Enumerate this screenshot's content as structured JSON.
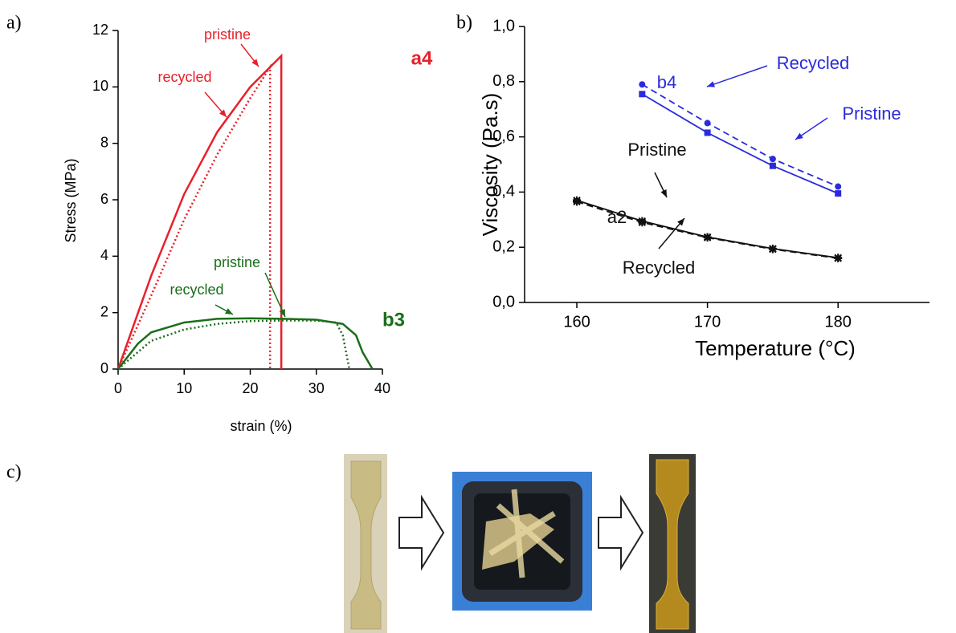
{
  "panel_labels": [
    "a)",
    "b)",
    "c)"
  ],
  "chart_data": [
    {
      "type": "line",
      "xlabel": "strain (%)",
      "ylabel": "Stress (MPa)",
      "xlim": [
        0,
        40
      ],
      "ylim": [
        0,
        12
      ],
      "xticks": [
        0,
        10,
        20,
        30,
        40
      ],
      "yticks": [
        0,
        2,
        4,
        6,
        8,
        10,
        12
      ],
      "series": [
        {
          "name": "a4 pristine",
          "color": "#e8202a",
          "dash": "solid",
          "x": [
            0,
            5,
            10,
            15,
            20,
            24.7,
            24.7
          ],
          "values": [
            0,
            3.3,
            6.2,
            8.4,
            10.0,
            11.1,
            0
          ]
        },
        {
          "name": "a4 recycled",
          "color": "#e8202a",
          "dash": "dotted",
          "x": [
            0,
            5,
            10,
            15,
            20,
            23,
            23
          ],
          "values": [
            0,
            2.6,
            5.3,
            7.6,
            9.6,
            10.7,
            0
          ]
        },
        {
          "name": "b3 pristine",
          "color": "#1a6e1a",
          "dash": "solid",
          "x": [
            0,
            3,
            5,
            10,
            15,
            20,
            25,
            30,
            34,
            36,
            37,
            38.5
          ],
          "values": [
            0,
            0.9,
            1.3,
            1.65,
            1.78,
            1.8,
            1.78,
            1.75,
            1.6,
            1.2,
            0.6,
            0
          ]
        },
        {
          "name": "b3 recycled",
          "color": "#1a6e1a",
          "dash": "dotted",
          "x": [
            0,
            5,
            10,
            15,
            20,
            25,
            30,
            33,
            34,
            35
          ],
          "values": [
            0,
            1.0,
            1.4,
            1.6,
            1.7,
            1.72,
            1.72,
            1.65,
            1.2,
            0
          ]
        }
      ],
      "annotations": [
        {
          "text": "pristine",
          "color": "#e8202a"
        },
        {
          "text": "recycled",
          "color": "#e8202a"
        },
        {
          "text": "a4",
          "color": "#e8202a"
        },
        {
          "text": "pristine",
          "color": "#1a6e1a"
        },
        {
          "text": "recycled",
          "color": "#1a6e1a"
        },
        {
          "text": "b3",
          "color": "#1a6e1a"
        }
      ]
    },
    {
      "type": "line",
      "xlabel": "Temperature (°C)",
      "ylabel": "Viscosity (Pa.s)",
      "xlim": [
        156,
        187
      ],
      "ylim": [
        0,
        1.0
      ],
      "xticks": [
        160,
        170,
        180
      ],
      "yticks": [
        {
          "value": 0,
          "label": "0,0"
        },
        {
          "value": 0.2,
          "label": "0,2"
        },
        {
          "value": 0.4,
          "label": "0,4"
        },
        {
          "value": 0.6,
          "label": "0,6"
        },
        {
          "value": 0.8,
          "label": "0,8"
        },
        {
          "value": 1.0,
          "label": "1,0"
        }
      ],
      "series": [
        {
          "name": "b4 recycled",
          "color": "#2b2bdc",
          "dash": "dashed",
          "marker": "circle",
          "x": [
            165,
            170,
            175,
            180
          ],
          "values": [
            0.79,
            0.65,
            0.52,
            0.42
          ]
        },
        {
          "name": "b4 pristine",
          "color": "#2b2bdc",
          "dash": "solid",
          "marker": "square",
          "x": [
            165,
            170,
            175,
            180
          ],
          "values": [
            0.755,
            0.615,
            0.495,
            0.395
          ]
        },
        {
          "name": "a2 pristine",
          "color": "#111111",
          "dash": "solid",
          "marker": "star",
          "x": [
            160,
            165,
            170,
            175,
            180
          ],
          "values": [
            0.37,
            0.295,
            0.237,
            0.195,
            0.162
          ]
        },
        {
          "name": "a2 recycled",
          "color": "#111111",
          "dash": "dashed",
          "marker": "star",
          "x": [
            160,
            165,
            170,
            175,
            180
          ],
          "values": [
            0.365,
            0.29,
            0.235,
            0.193,
            0.16
          ]
        }
      ],
      "annotations": [
        {
          "text": "Recycled",
          "color": "#2b2bdc"
        },
        {
          "text": "b4",
          "color": "#2b2bdc"
        },
        {
          "text": "Pristine",
          "color": "#2b2bdc"
        },
        {
          "text": "Pristine",
          "color": "#111111"
        },
        {
          "text": "a2",
          "color": "#111111"
        },
        {
          "text": "Recycled",
          "color": "#111111"
        }
      ]
    }
  ]
}
